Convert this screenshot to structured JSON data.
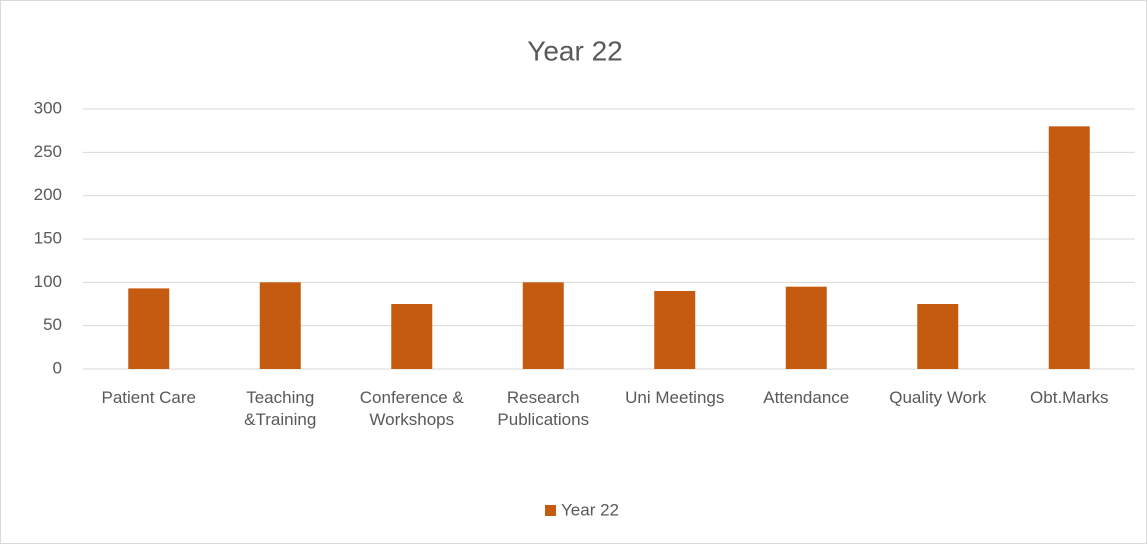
{
  "chart_data": {
    "type": "bar",
    "title": "Year 22",
    "categories": [
      "Patient Care",
      "Teaching &Training",
      "Conference & Workshops",
      "Research Publications",
      "Uni Meetings",
      "Attendance",
      "Quality Work",
      "Obt.Marks"
    ],
    "series": [
      {
        "name": "Year 22",
        "color": "#c55a11",
        "values": [
          93,
          100,
          75,
          100,
          90,
          95,
          75,
          280
        ]
      }
    ],
    "ylim": [
      0,
      300
    ],
    "yticks": [
      0,
      50,
      100,
      150,
      200,
      250,
      300
    ],
    "grid": true,
    "legend": "bottom"
  }
}
